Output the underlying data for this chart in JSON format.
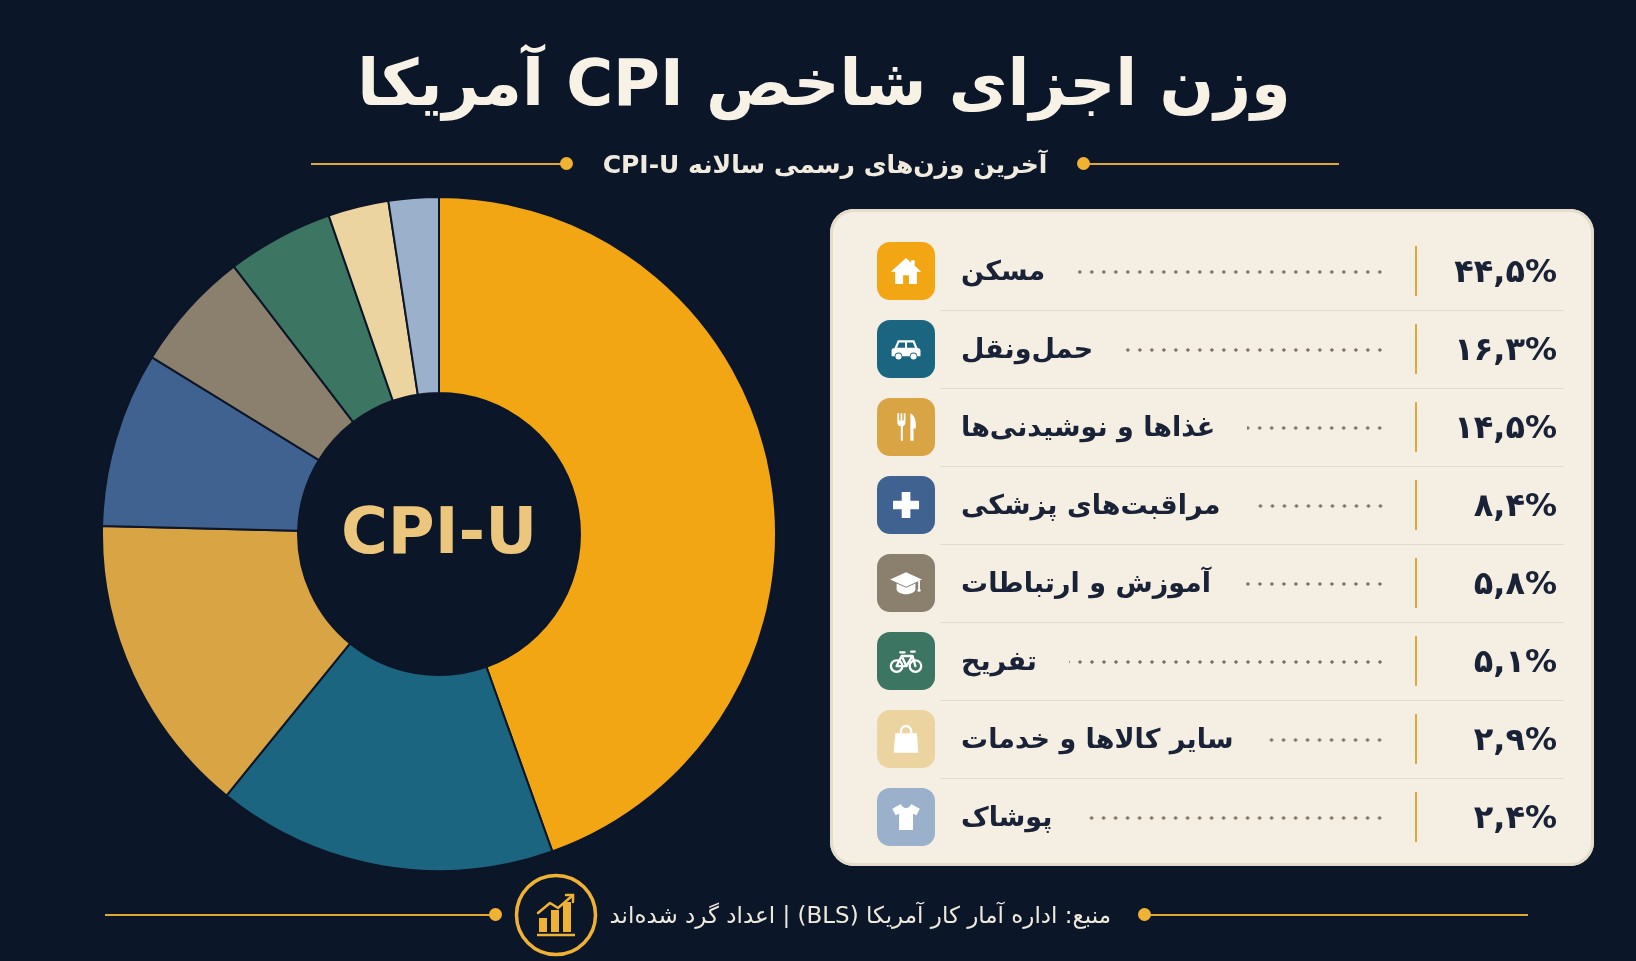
{
  "chart_data": {
    "type": "donut",
    "title": "وزن اجزای شاخص CPI آمریکا",
    "subtitle": "آخرین وزن‌های رسمی سالانه CPI-U",
    "categories": [
      "مسکن",
      "حمل‌ونقل",
      "غذاها و نوشیدنی‌ها",
      "مراقبت‌های پزشکی",
      "آموزش و ارتباطات",
      "تفریح",
      "سایر کالاها و خدمات",
      "پوشاک"
    ],
    "values": [
      44.5,
      16.3,
      14.5,
      8.4,
      5.8,
      5.1,
      2.9,
      2.4
    ],
    "value_labels": [
      "۴۴,۵%",
      "۱۶,۳%",
      "۱۴,۵%",
      "۸,۴%",
      "۵,۸%",
      "۵,۱%",
      "۲,۹%",
      "۲,۴%"
    ],
    "colors": [
      "#f2a614",
      "#1b6580",
      "#d8a444",
      "#3f6290",
      "#8b806e",
      "#3c7562",
      "#ecd4a0",
      "#9bb0ca"
    ],
    "legend": "right",
    "annotations": [
      "CPI-U",
      "منبع: اداره آمار کار آمریکا (BLS) | اعداد گرد شده‌اند"
    ]
  }
}
